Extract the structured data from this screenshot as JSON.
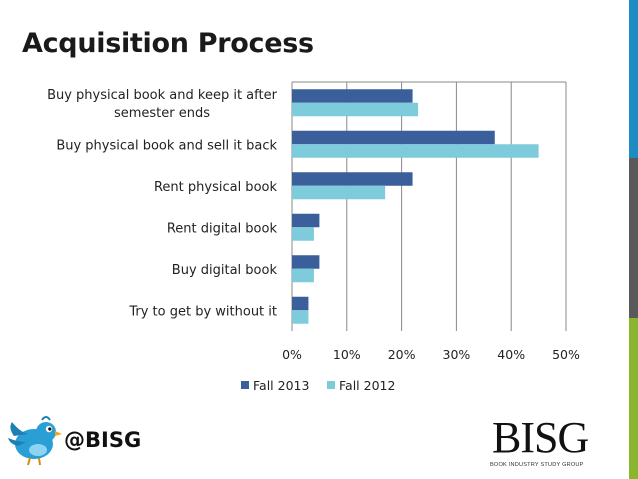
{
  "slide": {
    "title": "Acquisition Process",
    "handle": "@BISG",
    "logo_text": "BISG",
    "logo_subtitle": "BOOK INDUSTRY STUDY GROUP"
  },
  "colors": {
    "fall2013": "#3a5f9a",
    "fall2012": "#7dcbdb",
    "grid": "#888888",
    "strip_blue": "#1f8bc4",
    "strip_gray": "#595959",
    "strip_green": "#8ab52e"
  },
  "icons": {
    "bird": "twitter-bird-icon"
  },
  "chart_data": {
    "type": "bar",
    "orientation": "horizontal",
    "categories": [
      [
        "Buy physical book and keep it after",
        "semester ends"
      ],
      [
        "Buy physical book and sell it back"
      ],
      [
        "Rent physical book"
      ],
      [
        "Rent digital book"
      ],
      [
        "Buy digital book"
      ],
      [
        "Try to get by without it"
      ]
    ],
    "series": [
      {
        "name": "Fall 2013",
        "values": [
          22,
          37,
          22,
          5,
          5,
          3
        ]
      },
      {
        "name": "Fall 2012",
        "values": [
          23,
          45,
          17,
          4,
          4,
          3
        ]
      }
    ],
    "xlim": [
      0,
      50
    ],
    "ticks": [
      "0%",
      "10%",
      "20%",
      "30%",
      "40%",
      "50%"
    ],
    "tick_values": [
      0,
      10,
      20,
      30,
      40,
      50
    ],
    "grid": true,
    "legend_position": "bottom"
  }
}
